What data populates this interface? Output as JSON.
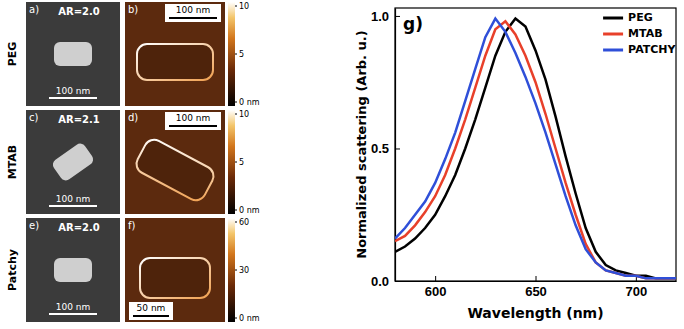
{
  "chart_data": {
    "type": "line",
    "title": "g)",
    "x_label": "Wavelength (nm)",
    "y_label": "Normalized scattering (Arb. u.)",
    "x": [
      580,
      585,
      590,
      595,
      600,
      605,
      610,
      615,
      620,
      625,
      630,
      635,
      640,
      645,
      650,
      655,
      660,
      665,
      670,
      675,
      680,
      685,
      690,
      695,
      700,
      705,
      710,
      715,
      720
    ],
    "series": [
      {
        "name": "PEG",
        "color": "#000000",
        "values": [
          0.11,
          0.13,
          0.16,
          0.2,
          0.25,
          0.32,
          0.4,
          0.5,
          0.61,
          0.73,
          0.85,
          0.94,
          0.99,
          0.96,
          0.87,
          0.76,
          0.62,
          0.47,
          0.33,
          0.2,
          0.11,
          0.06,
          0.04,
          0.03,
          0.02,
          0.02,
          0.01,
          0.01,
          0.01
        ]
      },
      {
        "name": "MTAB",
        "color": "#e8402a",
        "values": [
          0.15,
          0.17,
          0.21,
          0.26,
          0.32,
          0.4,
          0.5,
          0.61,
          0.73,
          0.85,
          0.95,
          0.98,
          0.93,
          0.85,
          0.75,
          0.63,
          0.5,
          0.37,
          0.25,
          0.14,
          0.07,
          0.04,
          0.03,
          0.02,
          0.02,
          0.01,
          0.01,
          0.01,
          0.01
        ]
      },
      {
        "name": "PATCHY",
        "color": "#2f4fd8",
        "values": [
          0.16,
          0.2,
          0.25,
          0.3,
          0.37,
          0.46,
          0.56,
          0.68,
          0.8,
          0.92,
          0.99,
          0.94,
          0.86,
          0.77,
          0.67,
          0.56,
          0.44,
          0.32,
          0.21,
          0.12,
          0.07,
          0.04,
          0.03,
          0.02,
          0.02,
          0.01,
          0.01,
          0.01,
          0.01
        ]
      }
    ],
    "xlim": [
      580,
      720
    ],
    "xticks": [
      600,
      650,
      700
    ],
    "ylim": [
      0,
      1.03
    ],
    "yticks": [
      {
        "value": 0,
        "label": "0.0"
      },
      {
        "value": 0.5,
        "label": "0.5"
      },
      {
        "value": 1,
        "label": "1.0"
      }
    ],
    "legend": "upper right",
    "grid": false
  },
  "images": {
    "rows": [
      {
        "name": "PEG",
        "sem": {
          "letter": "a)",
          "label": "AR=2.0",
          "scale_bar": "100 nm"
        },
        "afm": {
          "letter": "b)",
          "scale_bar": "100 nm",
          "colorbar_range": [
            0,
            10
          ],
          "colorbar_ticks": [
            {
              "value": 0,
              "label": "0 nm"
            },
            5,
            10
          ]
        }
      },
      {
        "name": "MTAB",
        "sem": {
          "letter": "c)",
          "label": "AR=2.1",
          "scale_bar": "100 nm"
        },
        "afm": {
          "letter": "d)",
          "scale_bar": "100 nm",
          "colorbar_range": [
            0,
            10
          ],
          "colorbar_ticks": [
            {
              "value": 0,
              "label": "0 nm"
            },
            5,
            10
          ]
        }
      },
      {
        "name": "Patchy",
        "sem": {
          "letter": "e)",
          "label": "AR=2.0",
          "scale_bar": "100 nm"
        },
        "afm": {
          "letter": "f)",
          "scale_bar": "50 nm",
          "colorbar_range": [
            0,
            60
          ],
          "colorbar_ticks": [
            {
              "value": 0,
              "label": "0 nm"
            },
            30,
            60
          ]
        }
      }
    ]
  }
}
